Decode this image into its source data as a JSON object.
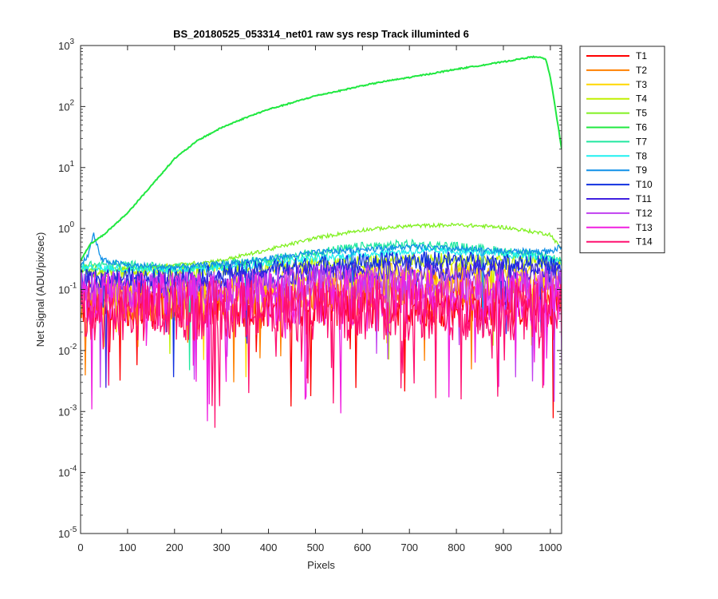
{
  "chart_data": {
    "type": "line",
    "title": "BS_20180525_053314_net01   raw sys resp    Track illuminted 6",
    "xlabel": "Pixels",
    "ylabel": "Net Signal (ADU/pix/sec)",
    "xlim": [
      0,
      1024
    ],
    "ylim": [
      1e-05,
      1000
    ],
    "yscale": "log",
    "x_ticks": [
      0,
      100,
      200,
      300,
      400,
      500,
      600,
      700,
      800,
      900,
      1000
    ],
    "y_ticks": [
      {
        "value": 1e-05,
        "base": "10",
        "exp": "-5"
      },
      {
        "value": 0.0001,
        "base": "10",
        "exp": "-4"
      },
      {
        "value": 0.001,
        "base": "10",
        "exp": "-3"
      },
      {
        "value": 0.01,
        "base": "10",
        "exp": "-2"
      },
      {
        "value": 0.1,
        "base": "10",
        "exp": "-1"
      },
      {
        "value": 1,
        "base": "10",
        "exp": "0"
      },
      {
        "value": 10,
        "base": "10",
        "exp": "1"
      },
      {
        "value": 100,
        "base": "10",
        "exp": "2"
      },
      {
        "value": 1000,
        "base": "10",
        "exp": "3"
      }
    ],
    "grid": false,
    "legend_position": "outside-right",
    "series": [
      {
        "name": "T1",
        "color": "#ff0000",
        "x": [
          0,
          100,
          200,
          300,
          400,
          500,
          600,
          700,
          800,
          900,
          1000,
          1024
        ],
        "y": [
          0.05,
          0.05,
          0.05,
          0.05,
          0.05,
          0.055,
          0.055,
          0.055,
          0.055,
          0.05,
          0.05,
          0.05
        ]
      },
      {
        "name": "T2",
        "color": "#ff8000",
        "x": [
          0,
          100,
          200,
          300,
          400,
          500,
          600,
          700,
          800,
          900,
          1000,
          1024
        ],
        "y": [
          0.06,
          0.06,
          0.06,
          0.07,
          0.08,
          0.09,
          0.1,
          0.11,
          0.11,
          0.1,
          0.09,
          0.08
        ]
      },
      {
        "name": "T3",
        "color": "#ffd700",
        "x": [
          0,
          100,
          200,
          300,
          400,
          500,
          600,
          700,
          800,
          900,
          1000,
          1024
        ],
        "y": [
          0.1,
          0.1,
          0.1,
          0.11,
          0.13,
          0.15,
          0.17,
          0.18,
          0.18,
          0.17,
          0.15,
          0.14
        ]
      },
      {
        "name": "T4",
        "color": "#c0f000",
        "x": [
          0,
          100,
          200,
          300,
          400,
          500,
          600,
          700,
          800,
          900,
          1000,
          1024
        ],
        "y": [
          0.2,
          0.2,
          0.2,
          0.21,
          0.23,
          0.26,
          0.28,
          0.3,
          0.3,
          0.29,
          0.27,
          0.25
        ]
      },
      {
        "name": "T5",
        "color": "#80f020",
        "x": [
          0,
          100,
          200,
          300,
          400,
          500,
          600,
          700,
          800,
          900,
          1000,
          1024
        ],
        "y": [
          0.2,
          0.22,
          0.25,
          0.3,
          0.45,
          0.7,
          0.95,
          1.1,
          1.15,
          1.05,
          0.8,
          0.45
        ]
      },
      {
        "name": "T6",
        "color": "#20e840",
        "x": [
          0,
          20,
          50,
          100,
          150,
          200,
          250,
          300,
          350,
          400,
          450,
          500,
          550,
          600,
          650,
          700,
          750,
          800,
          850,
          900,
          950,
          970,
          990,
          1000,
          1010,
          1024
        ],
        "y": [
          0.3,
          0.55,
          0.8,
          1.8,
          5,
          14,
          28,
          45,
          65,
          90,
          115,
          150,
          180,
          220,
          260,
          300,
          350,
          410,
          470,
          540,
          630,
          660,
          600,
          300,
          100,
          20
        ]
      },
      {
        "name": "T7",
        "color": "#20e8a0",
        "x": [
          0,
          100,
          200,
          300,
          400,
          500,
          600,
          700,
          800,
          900,
          1000,
          1024
        ],
        "y": [
          0.25,
          0.25,
          0.22,
          0.25,
          0.3,
          0.4,
          0.5,
          0.55,
          0.5,
          0.42,
          0.33,
          0.28
        ]
      },
      {
        "name": "T8",
        "color": "#20f0f0",
        "x": [
          0,
          100,
          200,
          300,
          400,
          500,
          600,
          700,
          800,
          900,
          1000,
          1024
        ],
        "y": [
          0.22,
          0.22,
          0.2,
          0.23,
          0.27,
          0.32,
          0.38,
          0.42,
          0.42,
          0.38,
          0.32,
          0.28
        ]
      },
      {
        "name": "T9",
        "color": "#1090e8",
        "x": [
          0,
          15,
          28,
          45,
          100,
          200,
          300,
          400,
          500,
          600,
          700,
          800,
          900,
          1000,
          1024
        ],
        "y": [
          0.25,
          0.35,
          0.8,
          0.3,
          0.25,
          0.23,
          0.26,
          0.32,
          0.4,
          0.46,
          0.5,
          0.46,
          0.42,
          0.42,
          0.5
        ]
      },
      {
        "name": "T10",
        "color": "#1030e0",
        "x": [
          0,
          100,
          200,
          300,
          400,
          500,
          600,
          700,
          800,
          900,
          1000,
          1024
        ],
        "y": [
          0.15,
          0.16,
          0.16,
          0.18,
          0.22,
          0.25,
          0.28,
          0.3,
          0.3,
          0.28,
          0.25,
          0.22
        ]
      },
      {
        "name": "T11",
        "color": "#4020e0",
        "x": [
          0,
          100,
          200,
          300,
          400,
          500,
          600,
          700,
          800,
          900,
          1000,
          1024
        ],
        "y": [
          0.12,
          0.13,
          0.13,
          0.14,
          0.16,
          0.18,
          0.2,
          0.21,
          0.21,
          0.2,
          0.18,
          0.16
        ]
      },
      {
        "name": "T12",
        "color": "#c040f0",
        "x": [
          0,
          100,
          200,
          300,
          400,
          500,
          600,
          700,
          800,
          900,
          1000,
          1024
        ],
        "y": [
          0.1,
          0.1,
          0.1,
          0.11,
          0.12,
          0.13,
          0.13,
          0.13,
          0.13,
          0.12,
          0.12,
          0.11
        ]
      },
      {
        "name": "T13",
        "color": "#f020e0",
        "x": [
          0,
          100,
          200,
          300,
          400,
          500,
          600,
          700,
          800,
          900,
          1000,
          1024
        ],
        "y": [
          0.07,
          0.07,
          0.07,
          0.07,
          0.07,
          0.075,
          0.075,
          0.075,
          0.075,
          0.07,
          0.07,
          0.07
        ]
      },
      {
        "name": "T14",
        "color": "#ff1070",
        "x": [
          0,
          100,
          200,
          300,
          400,
          500,
          600,
          700,
          800,
          900,
          1000,
          1024
        ],
        "y": [
          0.045,
          0.045,
          0.045,
          0.045,
          0.045,
          0.045,
          0.045,
          0.045,
          0.045,
          0.045,
          0.045,
          0.045
        ]
      }
    ]
  }
}
